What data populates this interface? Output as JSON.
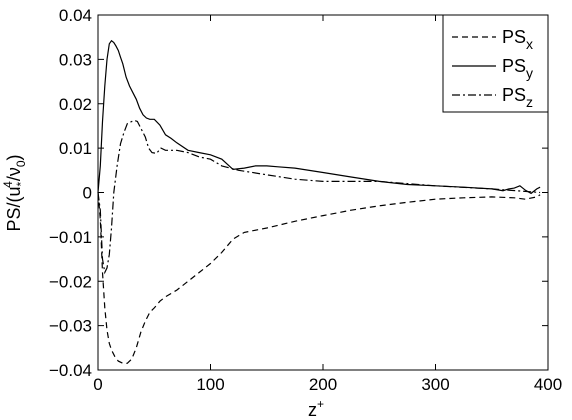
{
  "chart_data": {
    "type": "line",
    "xlabel": "z",
    "xlabel_sup": "+",
    "ylabel": "PS/(u*4/ν0)",
    "xlim": [
      0,
      400
    ],
    "ylim": [
      -0.04,
      0.04
    ],
    "x_ticks": [
      0,
      100,
      200,
      300,
      400
    ],
    "y_ticks": [
      -0.04,
      -0.03,
      -0.02,
      -0.01,
      0,
      0.01,
      0.02,
      0.03,
      0.04
    ],
    "x_tick_labels": [
      "0",
      "100",
      "200",
      "300",
      "400"
    ],
    "y_tick_labels": [
      "−0.04",
      "−0.03",
      "−0.02",
      "−0.01",
      "0",
      "0.01",
      "0.02",
      "0.03",
      "0.04"
    ],
    "grid": false,
    "legend_position": "top-right",
    "series": [
      {
        "name": "PS_x",
        "legend_main": "PS",
        "legend_sub": "x",
        "dash": "dashed",
        "x": [
          0,
          2,
          4,
          6,
          8,
          10,
          12,
          15,
          18,
          22,
          26,
          30,
          34,
          38,
          42,
          46,
          50,
          55,
          60,
          70,
          80,
          90,
          100,
          110,
          120,
          130,
          150,
          175,
          200,
          225,
          250,
          275,
          300,
          325,
          350,
          370,
          380,
          390,
          393
        ],
        "y": [
          0,
          -0.006,
          -0.018,
          -0.026,
          -0.031,
          -0.034,
          -0.0355,
          -0.037,
          -0.038,
          -0.0385,
          -0.0385,
          -0.0375,
          -0.035,
          -0.0315,
          -0.029,
          -0.027,
          -0.026,
          -0.0245,
          -0.0235,
          -0.022,
          -0.02,
          -0.018,
          -0.016,
          -0.0135,
          -0.0105,
          -0.009,
          -0.008,
          -0.0065,
          -0.0052,
          -0.004,
          -0.003,
          -0.0022,
          -0.0015,
          -0.0012,
          -0.001,
          -0.0012,
          -0.0015,
          -0.001,
          -0.0005
        ]
      },
      {
        "name": "PS_y",
        "legend_main": "PS",
        "legend_sub": "y",
        "dash": "solid",
        "x": [
          0,
          2,
          4,
          6,
          8,
          10,
          12,
          14,
          16,
          18,
          20,
          22,
          25,
          28,
          31,
          34,
          37,
          40,
          43,
          46,
          50,
          55,
          60,
          65,
          70,
          80,
          90,
          100,
          110,
          120,
          130,
          140,
          150,
          160,
          175,
          200,
          225,
          250,
          275,
          300,
          325,
          350,
          360,
          365,
          370,
          375,
          380,
          385,
          390,
          393
        ],
        "y": [
          0,
          0.006,
          0.016,
          0.024,
          0.03,
          0.0335,
          0.0342,
          0.0338,
          0.033,
          0.032,
          0.0305,
          0.029,
          0.026,
          0.024,
          0.0225,
          0.021,
          0.019,
          0.0175,
          0.0168,
          0.0165,
          0.0165,
          0.0152,
          0.013,
          0.0122,
          0.0112,
          0.0095,
          0.009,
          0.0085,
          0.0075,
          0.0052,
          0.0055,
          0.006,
          0.006,
          0.0058,
          0.0055,
          0.0045,
          0.0035,
          0.0025,
          0.0018,
          0.0015,
          0.0012,
          0.0008,
          0.0004,
          0.0008,
          0.001,
          0.0015,
          0.0005,
          -0.0002,
          0.0008,
          0.0012
        ]
      },
      {
        "name": "PS_z",
        "legend_main": "PS",
        "legend_sub": "z",
        "dash": "dash-dot",
        "x": [
          0,
          2,
          4,
          6,
          8,
          10,
          12,
          14,
          17,
          20,
          23,
          26,
          30,
          33,
          35,
          38,
          42,
          45,
          48,
          52,
          56,
          60,
          70,
          80,
          90,
          100,
          110,
          125,
          150,
          175,
          200,
          250,
          300,
          350,
          393
        ],
        "y": [
          0,
          -0.004,
          -0.015,
          -0.018,
          -0.017,
          -0.014,
          -0.008,
          0,
          0.006,
          0.011,
          0.0135,
          0.0155,
          0.016,
          0.0162,
          0.016,
          0.0145,
          0.0125,
          0.01,
          0.009,
          0.0088,
          0.01,
          0.0095,
          0.0095,
          0.009,
          0.008,
          0.0075,
          0.006,
          0.005,
          0.004,
          0.003,
          0.0025,
          0.0025,
          0.0015,
          0.0008,
          0.0
        ]
      }
    ]
  }
}
